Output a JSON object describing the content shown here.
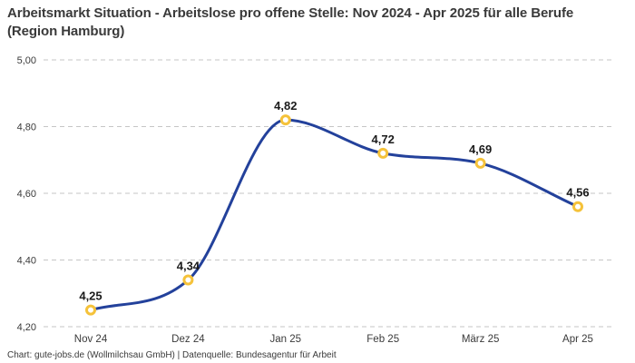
{
  "footer": {
    "credit": "Chart: gute-jobs.de (Wollmilchsau GmbH) | Datenquelle: Bundesagentur für Arbeit"
  },
  "chart_data": {
    "type": "line",
    "title": "Arbeitsmarkt Situation - Arbeitslose pro offene Stelle: Nov 2024 - Apr 2025 für alle Berufe (Region Hamburg)",
    "categories": [
      "Nov 24",
      "Dez 24",
      "Jan 25",
      "Feb 25",
      "März 25",
      "Apr 25"
    ],
    "values": [
      4.25,
      4.34,
      4.82,
      4.72,
      4.69,
      4.56
    ],
    "value_labels": [
      "4,25",
      "4,34",
      "4,82",
      "4,72",
      "4,69",
      "4,56"
    ],
    "ylim": [
      4.2,
      5.0
    ],
    "y_ticks": [
      5.0,
      4.8,
      4.6,
      4.4,
      4.2
    ],
    "y_tick_labels": [
      "5,00",
      "4,80",
      "4,60",
      "4,40",
      "4,20"
    ],
    "xlabel": "",
    "ylabel": "",
    "grid": "horizontal-dashed",
    "legend": "none",
    "curve": "smooth-monotone",
    "marker": "ring-circle",
    "colors": {
      "line": "#23419B",
      "marker_ring": "#F5C23A",
      "marker_fill": "#FFFFFF",
      "grid": "#C6C6C6",
      "axis_text": "#3A3A3A",
      "value_label": "#1B1B1B",
      "title": "#3A3A3A",
      "credit": "#3A3A3A",
      "background": "#FFFFFF"
    }
  }
}
